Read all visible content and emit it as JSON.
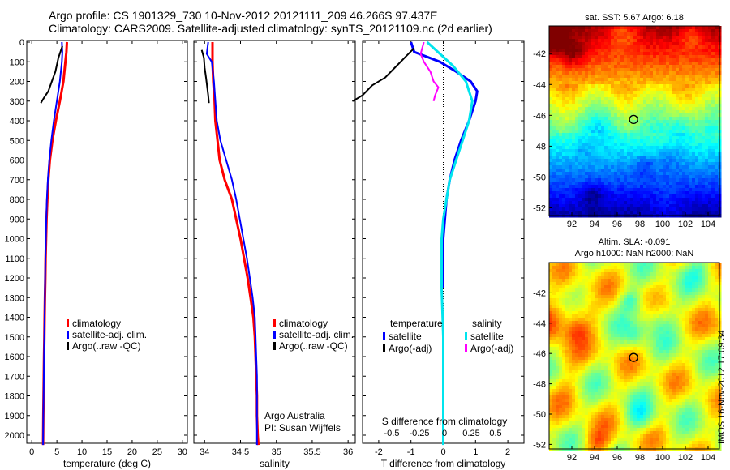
{
  "titles": {
    "line1": "Argo profile: CS 1901329_730 10-Nov-2012 20121111_209 46.266S 97.437E",
    "line2": "Climatology: CARS2009. Satellite-adjusted climatology: synTS_20121109.nc (2d earlier)"
  },
  "colors": {
    "climatology": "#ff0000",
    "satellite": "#0000ff",
    "argo": "#000000",
    "satellite_salinity": "#00e5ee",
    "argo_salinity": "#ff00ff"
  },
  "chart_data": [
    {
      "type": "line",
      "panel": "temperature",
      "xlabel": "temperature (deg C)",
      "ylabel": "",
      "xlim": [
        -1,
        31
      ],
      "ylim": [
        2100,
        0
      ],
      "xticks": [
        "0",
        "5",
        "10",
        "15",
        "20",
        "25",
        "30"
      ],
      "xtick_values": [
        0,
        5,
        10,
        15,
        20,
        25,
        30
      ],
      "yticks": [
        "0",
        "100",
        "200",
        "300",
        "400",
        "500",
        "600",
        "700",
        "800",
        "900",
        "1000",
        "1100",
        "1200",
        "1300",
        "1400",
        "1500",
        "1600",
        "1700",
        "1800",
        "1900",
        "2000"
      ],
      "ytick_values": [
        0,
        100,
        200,
        300,
        400,
        500,
        600,
        700,
        800,
        900,
        1000,
        1100,
        1200,
        1300,
        1400,
        1500,
        1600,
        1700,
        1800,
        1900,
        2000
      ],
      "legend": [
        "climatology",
        "satellite-adj. clim.",
        "Argo(..raw -QC)"
      ],
      "series": [
        {
          "name": "climatology",
          "color": "#ff0000",
          "width": 3,
          "x": [
            7.0,
            6.9,
            6.7,
            6.3,
            5.6,
            4.8,
            4.1,
            3.6,
            3.3,
            3.1,
            2.95,
            2.85,
            2.75,
            2.7,
            2.62,
            2.55,
            2.5,
            2.45,
            2.4,
            2.35,
            2.3,
            2.25
          ],
          "y": [
            0,
            50,
            100,
            200,
            300,
            400,
            500,
            600,
            700,
            800,
            900,
            1000,
            1100,
            1200,
            1300,
            1400,
            1500,
            1600,
            1700,
            1800,
            1900,
            2050
          ]
        },
        {
          "name": "satellite-adj. clim.",
          "color": "#0000ff",
          "width": 2,
          "x": [
            6.0,
            6.1,
            6.0,
            5.6,
            5.0,
            4.4,
            3.9,
            3.5,
            3.2,
            3.0,
            2.9,
            2.8,
            2.72,
            2.65,
            2.6,
            2.55,
            2.5,
            2.45,
            2.4,
            2.35,
            2.3,
            2.25
          ],
          "y": [
            0,
            50,
            100,
            200,
            300,
            400,
            500,
            600,
            700,
            800,
            900,
            1000,
            1100,
            1200,
            1300,
            1400,
            1500,
            1600,
            1700,
            1800,
            1900,
            2050
          ]
        },
        {
          "name": "Argo(..raw -QC)",
          "color": "#000000",
          "width": 2,
          "x": [
            6.1,
            5.3,
            4.7,
            4.0,
            3.3,
            2.5,
            1.8
          ],
          "y": [
            20,
            80,
            150,
            200,
            250,
            280,
            310
          ]
        }
      ]
    },
    {
      "type": "line",
      "panel": "salinity",
      "xlabel": "salinity",
      "ylabel": "",
      "xlim": [
        33.85,
        36.1
      ],
      "ylim": [
        2100,
        0
      ],
      "xticks": [
        "34",
        "34.5",
        "35",
        "35.5",
        "36"
      ],
      "xtick_values": [
        34,
        34.5,
        35,
        35.5,
        36
      ],
      "legend": [
        "climatology",
        "satellite-adj. clim.",
        "Argo(..raw -QC)"
      ],
      "annotation": [
        "Argo Australia",
        "PI: Susan Wijffels"
      ],
      "series": [
        {
          "name": "climatology",
          "color": "#ff0000",
          "width": 3,
          "x": [
            34.11,
            34.11,
            34.12,
            34.14,
            34.15,
            34.18,
            34.21,
            34.28,
            34.38,
            34.44,
            34.5,
            34.55,
            34.6,
            34.64,
            34.68,
            34.7,
            34.71,
            34.72,
            34.73,
            34.73,
            34.74,
            34.75
          ],
          "y": [
            0,
            100,
            200,
            300,
            400,
            500,
            600,
            700,
            800,
            900,
            1000,
            1100,
            1200,
            1300,
            1400,
            1500,
            1600,
            1700,
            1800,
            1900,
            2000,
            2050
          ]
        },
        {
          "name": "satellite-adj. clim.",
          "color": "#0000ff",
          "width": 2,
          "x": [
            34.05,
            34.03,
            34.1,
            34.13,
            34.15,
            34.17,
            34.22,
            34.3,
            34.38,
            34.44,
            34.49,
            34.54,
            34.59,
            34.63,
            34.67,
            34.7,
            34.71,
            34.72,
            34.73,
            34.73,
            34.73,
            34.73
          ],
          "y": [
            0,
            60,
            100,
            200,
            300,
            400,
            500,
            600,
            700,
            800,
            900,
            1000,
            1100,
            1200,
            1300,
            1400,
            1500,
            1600,
            1700,
            1800,
            1900,
            2050
          ]
        },
        {
          "name": "Argo(..raw -QC)",
          "color": "#000000",
          "width": 2,
          "x": [
            33.96,
            33.99,
            34.0,
            34.02,
            34.03,
            34.04,
            34.05,
            34.06
          ],
          "y": [
            40,
            80,
            130,
            180,
            210,
            240,
            270,
            310
          ]
        }
      ]
    },
    {
      "type": "line",
      "panel": "difference",
      "xlabel": "T difference from climatology",
      "title": "S difference from climatology",
      "xlim": [
        -2.5,
        2.5
      ],
      "ylim": [
        2100,
        0
      ],
      "xticks": [
        "-2",
        "-1",
        "0",
        "1",
        "2"
      ],
      "xtick_values": [
        -2,
        -1,
        0,
        1,
        2
      ],
      "s_xticks": [
        "-0.5",
        "-0.25",
        "0",
        "0.25",
        "0.5"
      ],
      "legend_headers": [
        "temperature",
        "salinity"
      ],
      "legend": [
        {
          "label": "satellite",
          "color": "#0000ff"
        },
        {
          "label": "Argo(-adj)",
          "color": "#000000"
        },
        {
          "label": "satellite",
          "color": "#00e5ee"
        },
        {
          "label": "Argo(-adj)",
          "color": "#ff00ff"
        }
      ],
      "series": [
        {
          "name": "satellite (temperature)",
          "color": "#0000ff",
          "width": 3,
          "x": [
            -1.0,
            -0.9,
            -0.1,
            0.4,
            0.85,
            1.05,
            1.0,
            0.8,
            0.55,
            0.35,
            0.2,
            0.1,
            0.05,
            0.0,
            0.0
          ],
          "y": [
            0,
            50,
            100,
            150,
            200,
            250,
            300,
            400,
            500,
            600,
            700,
            800,
            900,
            1000,
            1250
          ]
        },
        {
          "name": "Argo(-adj) (temperature)",
          "color": "#000000",
          "width": 2,
          "x": [
            -0.9,
            -1.2,
            -1.5,
            -1.8,
            -2.2,
            -2.5,
            -2.8
          ],
          "y": [
            30,
            80,
            130,
            180,
            220,
            270,
            300
          ]
        },
        {
          "name": "satellite (salinity)",
          "color": "#00e5ee",
          "width": 3,
          "x": [
            -0.5,
            -0.1,
            0.3,
            0.7,
            0.9,
            0.8,
            0.6,
            0.4,
            0.2,
            0.1,
            0.0,
            -0.05,
            -0.05,
            -0.05,
            0.0,
            0.0
          ],
          "y": [
            0,
            60,
            120,
            200,
            300,
            400,
            500,
            600,
            700,
            800,
            900,
            1000,
            1100,
            1250,
            1500,
            2050
          ]
        },
        {
          "name": "Argo(-adj) (salinity)",
          "color": "#ff00ff",
          "width": 2,
          "x": [
            -0.6,
            -0.7,
            -0.6,
            -0.4,
            -0.3,
            -0.15,
            -0.25,
            -0.3
          ],
          "y": [
            0,
            60,
            100,
            150,
            200,
            230,
            270,
            300
          ]
        }
      ]
    },
    {
      "type": "heatmap",
      "panel": "sst_map",
      "title": "sat. SST: 5.67  Argo: 6.18",
      "xticks": [
        "92",
        "94",
        "96",
        "98",
        "100",
        "102",
        "104"
      ],
      "xtick_values": [
        92,
        94,
        96,
        98,
        100,
        102,
        104
      ],
      "xlim": [
        90,
        105
      ],
      "yticks": [
        "-42",
        "-44",
        "-46",
        "-48",
        "-50",
        "-52"
      ],
      "ytick_values": [
        -42,
        -44,
        -46,
        -48,
        -50,
        -52
      ],
      "ylim": [
        -52.5,
        -40.2
      ],
      "marker": {
        "lon": 97.437,
        "lat": -46.266
      }
    },
    {
      "type": "heatmap",
      "panel": "sla_map",
      "title": [
        "Altim. SLA: -0.091",
        "Argo h1000: NaN h2000: NaN"
      ],
      "xticks": [
        "92",
        "94",
        "96",
        "98",
        "100",
        "102",
        "104"
      ],
      "xtick_values": [
        92,
        94,
        96,
        98,
        100,
        102,
        104
      ],
      "xlim": [
        90,
        105
      ],
      "yticks": [
        "-42",
        "-44",
        "-46",
        "-48",
        "-50",
        "-52"
      ],
      "ytick_values": [
        -42,
        -44,
        -46,
        -48,
        -50,
        -52
      ],
      "ylim": [
        -52.3,
        -40.0
      ],
      "marker": {
        "lon": 97.437,
        "lat": -46.266
      }
    }
  ],
  "footer": {
    "stamp": "IMOS 16-Nov-2012 17:09:34"
  }
}
